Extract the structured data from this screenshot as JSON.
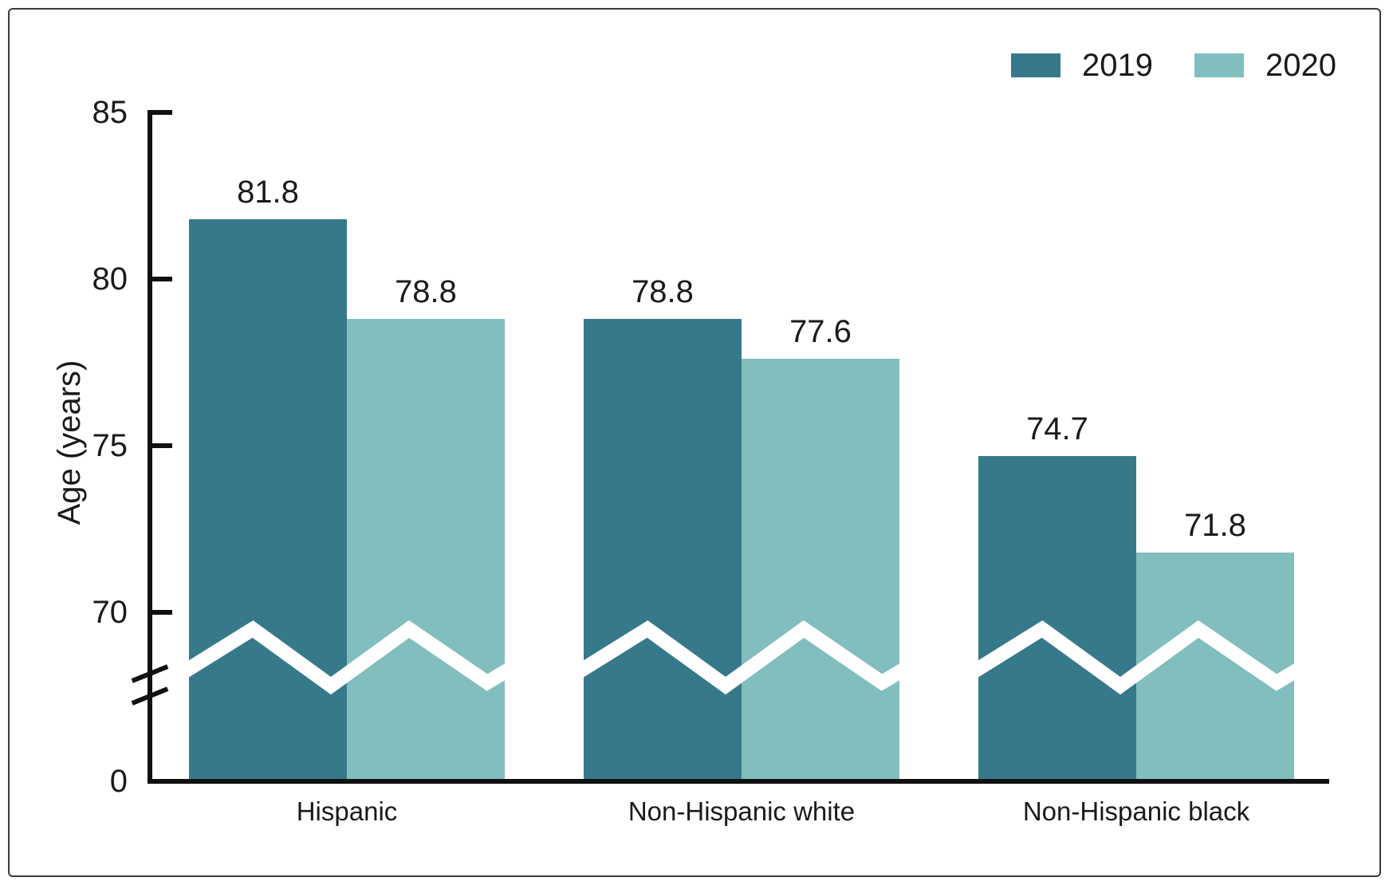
{
  "chart_data": {
    "type": "bar",
    "title": "",
    "ylabel": "Age (years)",
    "categories": [
      "Hispanic",
      "Non-Hispanic white",
      "Non-Hispanic black"
    ],
    "series": [
      {
        "name": "2019",
        "color": "#36798B",
        "values": [
          81.8,
          78.8,
          74.7
        ]
      },
      {
        "name": "2020",
        "color": "#81BEBD",
        "values": [
          78.8,
          77.6,
          71.8
        ]
      }
    ],
    "yticks": [
      0,
      70,
      75,
      80,
      85
    ],
    "axis_break": true,
    "axis_break_note": "y-axis broken between 0 and 70, shown with slashes on axis and white zigzag through bars",
    "legend_position": "top-right",
    "value_labels_shown": true,
    "value_label_format": "one decimal place",
    "grid": false,
    "axis_color": "#111111",
    "text_color": "#1a1a1a"
  }
}
